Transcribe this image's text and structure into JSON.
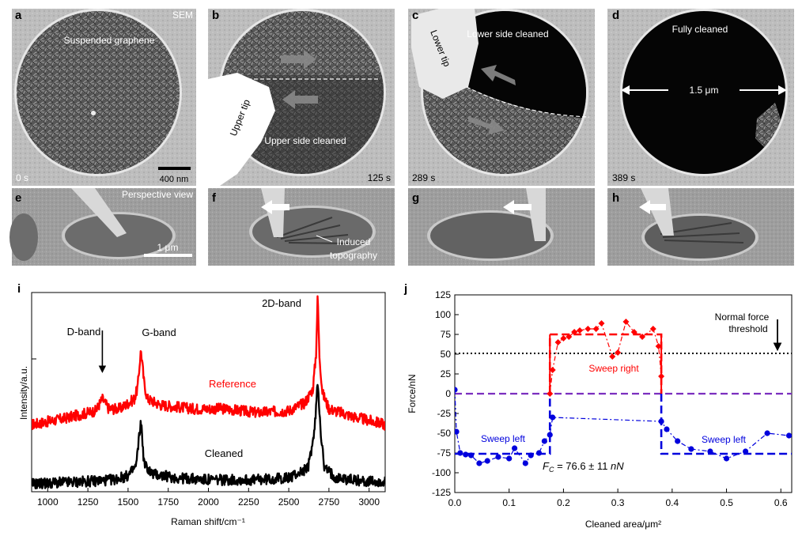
{
  "sem_panels": [
    {
      "letter": "a",
      "top_left": "Suspended graphene",
      "top_right": "SEM",
      "time": "0 s",
      "scale": "400 nm"
    },
    {
      "letter": "b",
      "tip": "Upper tip",
      "region": "Upper side cleaned",
      "time": "125 s"
    },
    {
      "letter": "c",
      "tip": "Lower tip",
      "region": "Lower side cleaned",
      "time": "289 s"
    },
    {
      "letter": "d",
      "region": "Fully cleaned",
      "diameter": "1.5 μm",
      "time": "389 s"
    }
  ],
  "perspective_panels": [
    {
      "letter": "e",
      "caption": "Perspective view",
      "scale": "1 μm"
    },
    {
      "letter": "f",
      "caption": "Induced topography"
    },
    {
      "letter": "g"
    },
    {
      "letter": "h"
    }
  ],
  "chart_data": [
    {
      "panel": "i",
      "type": "line",
      "xlabel": "Raman shift/cm⁻¹",
      "ylabel": "Intensity/a.u.",
      "xlim": [
        900,
        3100
      ],
      "xticks": [
        1000,
        1250,
        1500,
        1750,
        2000,
        2250,
        2500,
        2750,
        3000
      ],
      "series": [
        {
          "name": "Reference",
          "color": "#ff0000",
          "x": [
            900,
            1100,
            1250,
            1300,
            1340,
            1380,
            1450,
            1540,
            1560,
            1580,
            1600,
            1620,
            1700,
            1900,
            2100,
            2300,
            2500,
            2600,
            2650,
            2670,
            2680,
            2690,
            2710,
            2750,
            2900,
            3100
          ],
          "y": [
            0.34,
            0.37,
            0.4,
            0.41,
            0.47,
            0.42,
            0.42,
            0.47,
            0.53,
            0.72,
            0.55,
            0.47,
            0.44,
            0.42,
            0.42,
            0.4,
            0.41,
            0.45,
            0.52,
            0.7,
            1.0,
            0.7,
            0.5,
            0.42,
            0.38,
            0.34
          ]
        },
        {
          "name": "Cleaned",
          "color": "#000000",
          "x": [
            900,
            1200,
            1400,
            1500,
            1550,
            1580,
            1600,
            1650,
            1800,
            2000,
            2300,
            2500,
            2620,
            2660,
            2680,
            2700,
            2720,
            2800,
            3000,
            3100
          ],
          "y": [
            0.04,
            0.05,
            0.06,
            0.08,
            0.13,
            0.36,
            0.14,
            0.09,
            0.07,
            0.06,
            0.06,
            0.07,
            0.12,
            0.3,
            0.56,
            0.3,
            0.12,
            0.07,
            0.05,
            0.05
          ]
        }
      ],
      "annotations": {
        "d_band": "D-band",
        "g_band": "G-band",
        "band_2d": "2D-band"
      }
    },
    {
      "panel": "j",
      "type": "scatter",
      "xlabel": "Cleaned area/μm²",
      "ylabel": "Force/nN",
      "xlim": [
        0,
        0.62
      ],
      "ylim": [
        -125,
        125
      ],
      "xticks": [
        0.0,
        0.1,
        0.2,
        0.3,
        0.4,
        0.5,
        0.6
      ],
      "yticks": [
        -125,
        -100,
        -75,
        -50,
        -25,
        0,
        25,
        50,
        75,
        100,
        125
      ],
      "threshold": 51,
      "threshold_label_1": "Normal force",
      "threshold_label_2": "threshold",
      "fc_label": "F",
      "fc_sub": "C",
      "fc_value": " = 76.6 ± 11 ",
      "fc_unit": "nN",
      "series": [
        {
          "name": "Sweep right",
          "color": "#ff0000",
          "x": [
            0.175,
            0.18,
            0.19,
            0.2,
            0.21,
            0.22,
            0.23,
            0.245,
            0.26,
            0.27,
            0.29,
            0.3,
            0.315,
            0.33,
            0.345,
            0.365,
            0.375,
            0.38
          ],
          "y": [
            0,
            30,
            65,
            70,
            72,
            78,
            80,
            82,
            82,
            89,
            47,
            52,
            91,
            78,
            72,
            82,
            60,
            22
          ]
        },
        {
          "name": "Sweep left",
          "color": "#0000dd",
          "x": [
            0.0,
            0.003,
            0.01,
            0.02,
            0.03,
            0.045,
            0.06,
            0.08,
            0.1,
            0.11,
            0.13,
            0.14,
            0.155,
            0.165,
            0.175,
            0.18,
            0.38,
            0.39,
            0.41,
            0.435,
            0.47,
            0.5,
            0.535,
            0.575,
            0.615
          ],
          "y": [
            5,
            -48,
            -75,
            -77,
            -78,
            -88,
            -85,
            -80,
            -82,
            -69,
            -88,
            -78,
            -75,
            -60,
            -52,
            -30,
            -35,
            -45,
            -60,
            -70,
            -73,
            -82,
            -73,
            -50,
            -53
          ]
        }
      ],
      "fit_right": {
        "level": 75,
        "x_start": 0.175,
        "x_end": 0.38
      },
      "fit_left": {
        "level": -76,
        "x_end_left": 0.175,
        "x_start_right": 0.38
      }
    }
  ]
}
